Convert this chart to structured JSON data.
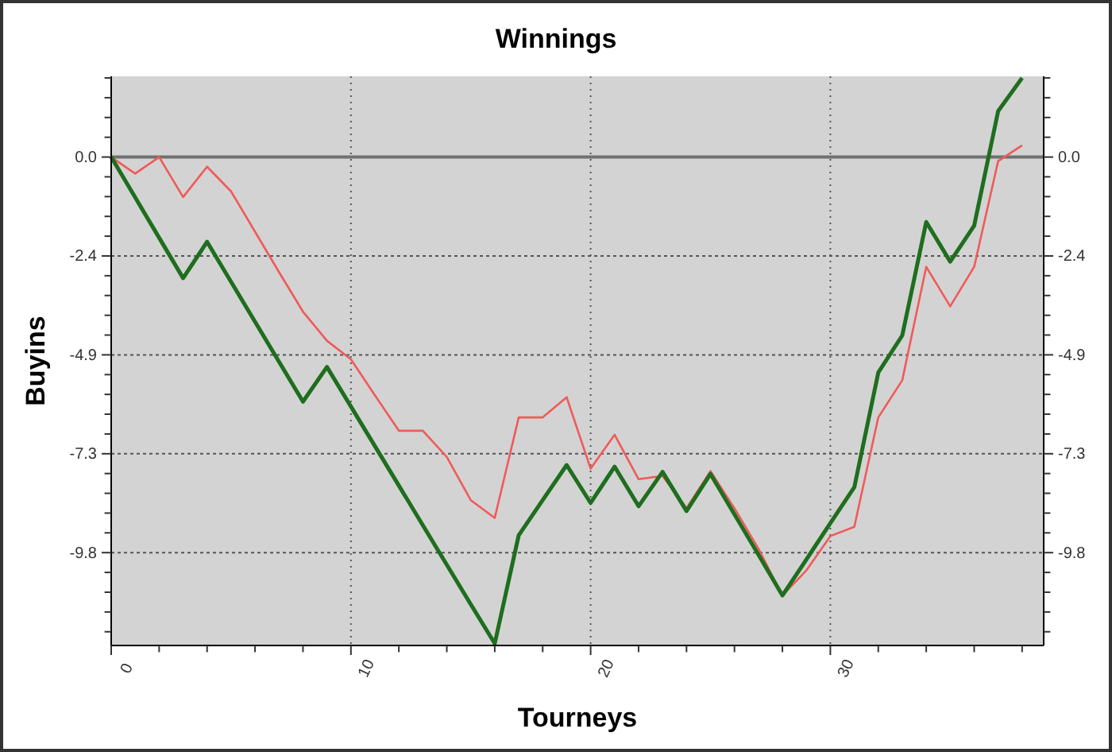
{
  "chart_data": {
    "type": "line",
    "title": "Winnings",
    "xlabel": "Tourneys",
    "ylabel": "Buyins",
    "x": [
      0,
      1,
      2,
      3,
      4,
      5,
      6,
      7,
      8,
      9,
      10,
      11,
      12,
      13,
      14,
      15,
      16,
      17,
      18,
      19,
      20,
      21,
      22,
      23,
      24,
      25,
      26,
      27,
      28,
      29,
      30,
      31,
      32,
      33,
      34,
      35,
      36,
      37,
      38
    ],
    "series": [
      {
        "color": "#f05a5a",
        "values": [
          0,
          -0.41,
          0,
          -0.99,
          -0.24,
          -0.85,
          -1.85,
          -2.85,
          -3.83,
          -4.55,
          -5.01,
          -5.9,
          -6.78,
          -6.78,
          -7.43,
          -8.5,
          -8.94,
          -6.45,
          -6.45,
          -5.95,
          -7.72,
          -6.88,
          -7.98,
          -7.9,
          -8.7,
          -7.78,
          -8.7,
          -9.7,
          -10.86,
          -10.24,
          -9.39,
          -9.16,
          -6.45,
          -5.53,
          -2.72,
          -3.7,
          -2.72,
          -0.1,
          0.29
        ]
      },
      {
        "color": "#1e6e1e",
        "values": [
          0,
          -1,
          -2,
          -3,
          -2.1,
          -3.09,
          -4.08,
          -5.07,
          -6.06,
          -5.2,
          -6.18,
          -7.16,
          -8.14,
          -9.12,
          -10.1,
          -11.08,
          -12.05,
          -9.37,
          -8.5,
          -7.63,
          -8.57,
          -7.67,
          -8.65,
          -7.8,
          -8.77,
          -7.85,
          -8.85,
          -9.85,
          -10.86,
          -9.97,
          -9.07,
          -8.18,
          -5.34,
          -4.42,
          -1.61,
          -2.59,
          -1.7,
          1.14,
          1.96
        ]
      }
    ],
    "xlim": [
      0,
      38.9
    ],
    "ylim": [
      -12.1,
      2.0
    ],
    "y2lim": [
      -12.1,
      2.0
    ],
    "xticks": [
      0,
      {
        "value": 2,
        "label": null
      },
      {
        "value": 4,
        "label": null
      },
      {
        "value": 6,
        "label": null
      },
      {
        "value": 8,
        "label": null
      },
      10,
      {
        "value": 12,
        "label": null
      },
      {
        "value": 14,
        "label": null
      },
      {
        "value": 16,
        "label": null
      },
      {
        "value": 18,
        "label": null
      },
      20,
      {
        "value": 22,
        "label": null
      },
      {
        "value": 24,
        "label": null
      },
      {
        "value": 26,
        "label": null
      },
      {
        "value": 28,
        "label": null
      },
      30,
      {
        "value": 32,
        "label": null
      },
      {
        "value": 34,
        "label": null
      },
      {
        "value": 36,
        "label": null
      },
      {
        "value": 38,
        "label": null
      }
    ],
    "yticks": [
      {
        "value": 1.96,
        "label": null
      },
      {
        "value": 1.47,
        "label": null
      },
      {
        "value": 0.98,
        "label": null
      },
      {
        "value": 0.49,
        "label": null
      },
      {
        "value": 0,
        "label": "0.0"
      },
      {
        "value": -0.49,
        "label": null
      },
      {
        "value": -0.98,
        "label": null
      },
      {
        "value": -1.47,
        "label": null
      },
      {
        "value": -1.96,
        "label": null
      },
      {
        "value": -2.45,
        "label": "-2.4"
      },
      {
        "value": -2.94,
        "label": null
      },
      {
        "value": -3.43,
        "label": null
      },
      {
        "value": -3.92,
        "label": null
      },
      {
        "value": -4.41,
        "label": null
      },
      -4.9,
      {
        "value": -5.39,
        "label": null
      },
      {
        "value": -5.88,
        "label": null
      },
      {
        "value": -6.37,
        "label": null
      },
      {
        "value": -6.86,
        "label": null
      },
      {
        "value": -7.35,
        "label": "-7.3"
      },
      {
        "value": -7.84,
        "label": null
      },
      {
        "value": -8.33,
        "label": null
      },
      {
        "value": -8.82,
        "label": null
      },
      {
        "value": -9.31,
        "label": null
      },
      -9.8,
      {
        "value": -10.29,
        "label": null
      },
      {
        "value": -10.78,
        "label": null
      },
      {
        "value": -11.27,
        "label": null
      },
      {
        "value": -11.76,
        "label": null
      }
    ],
    "y2ticks": [
      {
        "value": 1.96,
        "label": null
      },
      {
        "value": 1.47,
        "label": null
      },
      {
        "value": 0.98,
        "label": null
      },
      {
        "value": 0.49,
        "label": null
      },
      {
        "value": 0,
        "label": "0.0"
      },
      {
        "value": -0.49,
        "label": null
      },
      {
        "value": -0.98,
        "label": null
      },
      {
        "value": -1.47,
        "label": null
      },
      {
        "value": -1.96,
        "label": null
      },
      {
        "value": -2.45,
        "label": "-2.4"
      },
      {
        "value": -2.94,
        "label": null
      },
      {
        "value": -3.43,
        "label": null
      },
      {
        "value": -3.92,
        "label": null
      },
      {
        "value": -4.41,
        "label": null
      },
      -4.9,
      {
        "value": -5.39,
        "label": null
      },
      {
        "value": -5.88,
        "label": null
      },
      {
        "value": -6.37,
        "label": null
      },
      {
        "value": -6.86,
        "label": null
      },
      {
        "value": -7.35,
        "label": "-7.3"
      },
      {
        "value": -7.84,
        "label": null
      },
      {
        "value": -8.33,
        "label": null
      },
      {
        "value": -8.82,
        "label": null
      },
      {
        "value": -9.31,
        "label": null
      },
      -9.8,
      {
        "value": -10.29,
        "label": null
      },
      {
        "value": -10.78,
        "label": null
      },
      {
        "value": -11.27,
        "label": null
      },
      {
        "value": -11.76,
        "label": null
      }
    ],
    "ref_lines": [
      {
        "axis": "y",
        "value": 0,
        "color": "#707070"
      }
    ],
    "grid": true,
    "marker": "none",
    "line_style": "solid"
  }
}
